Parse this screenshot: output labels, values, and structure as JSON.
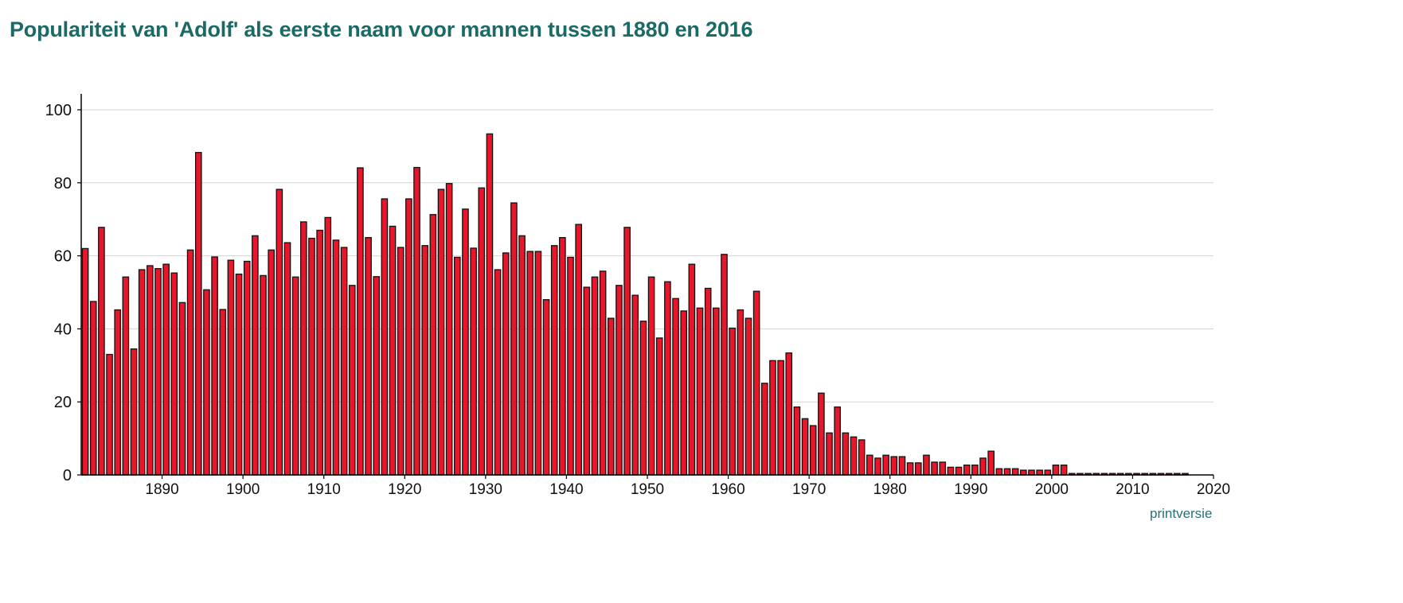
{
  "title": "Populariteit van 'Adolf' als eerste naam voor mannen tussen 1880 en 2016",
  "print_link": "printversie",
  "colors": {
    "bar_fill": "#e8162a",
    "bar_stroke": "#111111",
    "title": "#1b6a66",
    "grid": "#d3d3d3",
    "link": "#2b6f78"
  },
  "chart_data": {
    "type": "bar",
    "title": "Populariteit van 'Adolf' als eerste naam voor mannen tussen 1880 en 2016",
    "xlabel": "",
    "ylabel": "",
    "xlim": [
      1880,
      2020
    ],
    "ylim": [
      0,
      105
    ],
    "grid": true,
    "y_ticks": [
      0,
      20,
      40,
      60,
      80,
      100
    ],
    "x_ticks": [
      1890,
      1900,
      1910,
      1920,
      1930,
      1940,
      1950,
      1960,
      1970,
      1980,
      1990,
      2000,
      2010,
      2020
    ],
    "start_year": 1880,
    "values": [
      62,
      47.5,
      67.8,
      33,
      45.2,
      54.2,
      34.5,
      56.2,
      57.3,
      56.5,
      57.7,
      55.3,
      47.2,
      61.6,
      88.3,
      50.7,
      59.7,
      45.3,
      58.8,
      55,
      58.5,
      65.5,
      54.6,
      61.6,
      78.2,
      63.6,
      54.2,
      69.3,
      64.8,
      67,
      70.5,
      64.3,
      62.3,
      51.9,
      84.1,
      65,
      54.3,
      75.6,
      68.1,
      62.3,
      75.6,
      84.2,
      62.8,
      71.3,
      78.2,
      79.8,
      59.6,
      72.8,
      62.1,
      78.6,
      93.4,
      56.2,
      60.8,
      74.5,
      65.5,
      61.2,
      61.2,
      48,
      62.8,
      65,
      59.6,
      68.6,
      51.4,
      54.2,
      55.8,
      42.9,
      51.9,
      67.8,
      49.2,
      42.1,
      54.2,
      37.5,
      52.9,
      48.3,
      44.9,
      57.7,
      45.7,
      51.1,
      45.7,
      60.4,
      40.2,
      45.2,
      42.9,
      50.3,
      25.1,
      31.3,
      31.3,
      33.4,
      18.6,
      15.4,
      13.5,
      22.4,
      11.5,
      18.6,
      11.5,
      10.4,
      9.6,
      5.4,
      4.6,
      5.4,
      5,
      5,
      3.3,
      3.3,
      5.4,
      3.5,
      3.5,
      2.1,
      2.1,
      2.7,
      2.7,
      4.6,
      6.5,
      1.7,
      1.7,
      1.7,
      1.3,
      1.3,
      1.3,
      1.3,
      2.7,
      2.7,
      0.4,
      0.4,
      0.4,
      0.4,
      0.4,
      0.4,
      0.4,
      0.4,
      0.4,
      0.4,
      0.4,
      0.4,
      0.4,
      0.4,
      0.4
    ]
  }
}
